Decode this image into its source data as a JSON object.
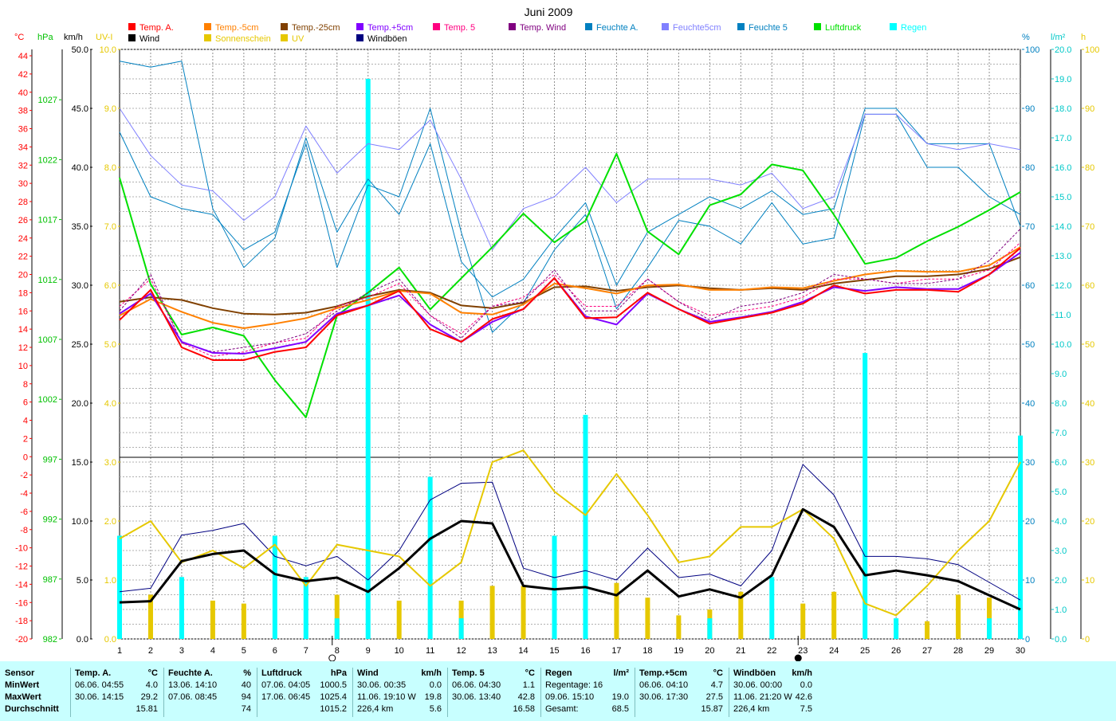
{
  "title": "Juni 2009",
  "legend": [
    {
      "label": "Temp. A.",
      "color": "#ff0000"
    },
    {
      "label": "Wind",
      "color": "#000000"
    },
    {
      "label": "Temp.-5cm",
      "color": "#ff8000"
    },
    {
      "label": "Sonnenschein",
      "color": "#e6c800"
    },
    {
      "label": "Temp.-25cm",
      "color": "#804000"
    },
    {
      "label": "UV",
      "color": "#e6c800"
    },
    {
      "label": "Temp.+5cm",
      "color": "#8000ff"
    },
    {
      "label": "Windböen",
      "color": "#000080"
    },
    {
      "label": "Temp. 5",
      "color": "#ff0080"
    },
    {
      "label": "Temp. Wind",
      "color": "#800080"
    },
    {
      "label": "Feuchte A.",
      "color": "#0080c0"
    },
    {
      "label": "Feuchte5cm",
      "color": "#8080ff"
    },
    {
      "label": "Feuchte 5",
      "color": "#0080c0"
    },
    {
      "label": "Luftdruck",
      "color": "#00e000"
    },
    {
      "label": "Regen",
      "color": "#00ffff"
    }
  ],
  "axis_headers": {
    "temp": "°C",
    "hpa": "hPa",
    "kmh": "km/h",
    "uv": "UV-I",
    "pct": "%",
    "rain": "l/m²",
    "hours": "h"
  },
  "chart_data": {
    "type": "line",
    "x_label_values": [
      1,
      2,
      3,
      4,
      5,
      6,
      7,
      8,
      9,
      10,
      11,
      12,
      13,
      14,
      15,
      16,
      17,
      18,
      19,
      20,
      21,
      22,
      23,
      24,
      25,
      26,
      27,
      28,
      29,
      30
    ],
    "temp_ticks": [
      44,
      42,
      40,
      38,
      36,
      34,
      32,
      30,
      28,
      26,
      24,
      22,
      20,
      18,
      16,
      14,
      12,
      10,
      8,
      6,
      4,
      2,
      0,
      -2,
      -4,
      -6,
      -8,
      -10,
      -12,
      -14,
      -16,
      -18,
      -20
    ],
    "temp_range": [
      -20,
      44
    ],
    "hpa_ticks": [
      1027,
      1022,
      1017,
      1012,
      1007,
      1002,
      997,
      992,
      987,
      982
    ],
    "hpa_range": [
      982,
      1032
    ],
    "upper_kmh_ticks": [
      "50.0",
      "45.0",
      "40.0",
      "35.0",
      "30.0",
      "25.0",
      "20.0"
    ],
    "upper_uv_ticks": [
      "10.0",
      "9.0",
      "8.0",
      "7.0",
      "6.0",
      "5.0",
      "4.0"
    ],
    "lower_kmh_ticks": [
      "15.0",
      "10.0",
      "5.0",
      "0.0"
    ],
    "lower_uv_ticks": [
      "3.0",
      "2.0",
      "1.0",
      "0.0"
    ],
    "lower_kmh_range": [
      0,
      15
    ],
    "pct_ticks": [
      100,
      90,
      80,
      70,
      60,
      50,
      40,
      30,
      20,
      10,
      0
    ],
    "rain_ticks": [
      "20.0",
      "19.0",
      "18.0",
      "17.0",
      "16.0",
      "15.0",
      "14.0",
      "13.0",
      "12.0",
      "11.0",
      "10.0",
      "9.0",
      "8.0",
      "7.0",
      "6.0",
      "5.0",
      "4.0",
      "3.0",
      "2.0",
      "1.0",
      "0.0"
    ],
    "rain_range": [
      0,
      20
    ],
    "hours_ticks": [
      100,
      90,
      80,
      70,
      60,
      50,
      40,
      30,
      20,
      10,
      0
    ],
    "hours_range": [
      0,
      100
    ],
    "moon_days": [
      {
        "day": 8,
        "phase": "first-quarter"
      },
      {
        "day": 23,
        "phase": "new-moon"
      }
    ],
    "series": [
      {
        "name": "Feuchte A.",
        "axis": "pct",
        "color": "#0080c0",
        "values": [
          86,
          75,
          73,
          72,
          66,
          69,
          84,
          63,
          77,
          75,
          90,
          69,
          52,
          57,
          66,
          72,
          56,
          63,
          71,
          70,
          67,
          74,
          67,
          68,
          89,
          89,
          80,
          80,
          75,
          72
        ]
      },
      {
        "name": "Feuchte 5",
        "axis": "pct",
        "color": "#0080c0",
        "values": [
          98,
          97,
          98,
          73,
          63,
          68,
          85,
          69,
          78,
          72,
          84,
          64,
          58,
          61,
          68,
          74,
          60,
          69,
          72,
          75,
          73,
          76,
          72,
          73,
          90,
          90,
          84,
          84,
          84,
          70
        ]
      },
      {
        "name": "Feuchte5cm",
        "axis": "pct",
        "color": "#8080ff",
        "values": [
          90,
          82,
          77,
          76,
          71,
          75,
          87,
          79,
          84,
          83,
          88,
          78,
          66,
          73,
          75,
          80,
          74,
          78,
          78,
          78,
          77,
          79,
          73,
          75,
          89,
          89,
          84,
          83,
          84,
          83
        ]
      },
      {
        "name": "Luftdruck",
        "axis": "hpa",
        "color": "#00e000",
        "values": [
          1020.5,
          1011.6,
          1007.4,
          1008.0,
          1007.3,
          1003.6,
          1000.5,
          1009.0,
          1010.9,
          1013.0,
          1009.5,
          1012.1,
          1014.7,
          1017.5,
          1015.1,
          1016.9,
          1022.5,
          1016.0,
          1014.1,
          1018.2,
          1019.1,
          1021.6,
          1021.1,
          1017.4,
          1013.3,
          1013.8,
          1015.2,
          1016.4,
          1017.8,
          1019.3
        ]
      },
      {
        "name": "Temp.-25cm",
        "axis": "temp",
        "color": "#804000",
        "values": [
          17.0,
          17.5,
          17.2,
          16.3,
          15.7,
          15.6,
          15.8,
          16.5,
          17.6,
          18.3,
          18.0,
          16.6,
          16.3,
          16.9,
          18.6,
          18.7,
          18.2,
          18.6,
          18.8,
          18.5,
          18.3,
          18.5,
          18.3,
          19.0,
          19.4,
          19.8,
          19.8,
          20.0,
          20.6,
          21.9
        ]
      },
      {
        "name": "Temp.-5cm",
        "axis": "temp",
        "color": "#ff8000",
        "values": [
          15.5,
          17.3,
          15.9,
          14.7,
          14.1,
          14.6,
          15.2,
          16.3,
          17.2,
          18.2,
          17.9,
          15.8,
          15.6,
          16.7,
          19.0,
          18.5,
          17.9,
          18.8,
          18.9,
          18.3,
          18.3,
          18.6,
          18.5,
          19.3,
          20.0,
          20.4,
          20.3,
          20.3,
          21.0,
          23.0
        ]
      },
      {
        "name": "Temp. 5",
        "axis": "temp",
        "color": "#ff0080",
        "values": [
          16.5,
          19.5,
          12.5,
          11.0,
          11.5,
          12.5,
          13.0,
          16.5,
          17.5,
          19.0,
          15.5,
          13.5,
          16.5,
          17.5,
          20.0,
          16.5,
          16.5,
          19.5,
          17.0,
          15.5,
          16.0,
          16.5,
          17.5,
          19.5,
          19.5,
          19.0,
          19.5,
          19.5,
          20.5,
          23.5
        ]
      },
      {
        "name": "Temp. Wind",
        "axis": "temp",
        "color": "#800080",
        "values": [
          16.0,
          20.0,
          12.5,
          11.5,
          12.0,
          12.5,
          13.5,
          16.0,
          18.0,
          19.5,
          15.5,
          13.0,
          16.5,
          17.0,
          20.5,
          16.0,
          16.0,
          19.5,
          17.0,
          15.0,
          16.5,
          17.0,
          18.0,
          20.0,
          19.5,
          19.0,
          19.0,
          19.5,
          21.5,
          25.0
        ]
      },
      {
        "name": "Temp.+5cm",
        "axis": "temp",
        "color": "#8000ff",
        "values": [
          15.7,
          17.9,
          12.6,
          11.4,
          11.3,
          11.9,
          12.6,
          15.7,
          16.6,
          17.7,
          14.5,
          12.6,
          14.8,
          16.2,
          19.6,
          15.4,
          14.5,
          17.9,
          16.2,
          14.8,
          15.3,
          15.9,
          17.0,
          18.6,
          18.2,
          18.6,
          18.4,
          18.4,
          20.0,
          22.4
        ]
      },
      {
        "name": "Temp. A.",
        "axis": "temp",
        "color": "#ff0000",
        "values": [
          15.0,
          18.3,
          12.0,
          10.6,
          10.6,
          11.5,
          12.0,
          15.5,
          16.6,
          18.2,
          14.0,
          12.6,
          15.1,
          16.2,
          19.6,
          15.2,
          15.3,
          18.0,
          16.2,
          14.6,
          15.2,
          15.8,
          16.8,
          18.8,
          17.9,
          18.3,
          18.3,
          18.1,
          20.0,
          22.9
        ]
      },
      {
        "name": "Windböen",
        "axis": "lower_kmh",
        "color": "#000080",
        "values": [
          4.0,
          4.3,
          8.8,
          9.2,
          9.8,
          7.0,
          6.2,
          7.0,
          5.0,
          7.5,
          11.8,
          13.2,
          13.3,
          6.0,
          5.2,
          5.8,
          5.0,
          7.7,
          5.2,
          5.5,
          4.5,
          7.5,
          14.8,
          12.2,
          7.0,
          7.0,
          6.8,
          6.3,
          4.8,
          3.3
        ]
      },
      {
        "name": "Sonnenschein",
        "axis": "hours",
        "color": "#e6c800",
        "values": [
          17,
          20,
          13,
          15,
          12,
          16,
          9,
          16,
          15,
          14,
          9,
          13,
          30,
          32,
          25,
          21,
          28,
          21,
          13,
          14,
          19,
          19,
          22,
          17,
          6,
          4,
          9,
          15,
          20,
          30
        ]
      },
      {
        "name": "Wind",
        "axis": "lower_kmh",
        "color": "#000000",
        "values": [
          3.1,
          3.2,
          6.6,
          7.2,
          7.5,
          5.5,
          4.9,
          5.2,
          4.0,
          6.0,
          8.5,
          10.0,
          9.8,
          4.5,
          4.2,
          4.4,
          3.7,
          5.8,
          3.6,
          4.2,
          3.5,
          5.4,
          11.0,
          9.5,
          5.4,
          5.8,
          5.4,
          4.9,
          3.7,
          2.5
        ]
      }
    ],
    "rain_bars": [
      {
        "day": 1,
        "value": 3.5
      },
      {
        "day": 3,
        "value": 2.1
      },
      {
        "day": 6,
        "value": 3.5
      },
      {
        "day": 7,
        "value": 2.1
      },
      {
        "day": 8,
        "value": 0.7
      },
      {
        "day": 9,
        "value": 19.0
      },
      {
        "day": 10,
        "value": 0.0
      },
      {
        "day": 11,
        "value": 5.5
      },
      {
        "day": 12,
        "value": 0.7
      },
      {
        "day": 15,
        "value": 3.5
      },
      {
        "day": 16,
        "value": 7.6
      },
      {
        "day": 20,
        "value": 0.7
      },
      {
        "day": 22,
        "value": 2.1
      },
      {
        "day": 25,
        "value": 9.7
      },
      {
        "day": 26,
        "value": 0.7
      },
      {
        "day": 29,
        "value": 0.7
      },
      {
        "day": 30,
        "value": 6.9
      }
    ],
    "uv_bars": [
      {
        "day": 2,
        "value": 0.75
      },
      {
        "day": 4,
        "value": 0.65
      },
      {
        "day": 5,
        "value": 0.6
      },
      {
        "day": 8,
        "value": 0.75
      },
      {
        "day": 10,
        "value": 0.65
      },
      {
        "day": 12,
        "value": 0.65
      },
      {
        "day": 13,
        "value": 0.9
      },
      {
        "day": 14,
        "value": 0.9
      },
      {
        "day": 17,
        "value": 0.95
      },
      {
        "day": 18,
        "value": 0.7
      },
      {
        "day": 19,
        "value": 0.4
      },
      {
        "day": 20,
        "value": 0.5
      },
      {
        "day": 21,
        "value": 0.8
      },
      {
        "day": 23,
        "value": 0.6
      },
      {
        "day": 24,
        "value": 0.8
      },
      {
        "day": 27,
        "value": 0.3
      },
      {
        "day": 28,
        "value": 0.75
      },
      {
        "day": 29,
        "value": 0.7
      }
    ]
  },
  "summary": {
    "row_labels": [
      "Sensor",
      "MinWert",
      "MaxWert",
      "Durchschnitt"
    ],
    "blocks": [
      {
        "name": "Temp. A.",
        "unit": "°C",
        "rows": [
          [
            "06.06.  04:55",
            "4.0"
          ],
          [
            "30.06.  14:15",
            "29.2"
          ],
          [
            "",
            "15.81"
          ]
        ]
      },
      {
        "name": "Feuchte A.",
        "unit": "%",
        "rows": [
          [
            "13.06.  14:10",
            "40"
          ],
          [
            "07.06.  08:45",
            "94"
          ],
          [
            "",
            "74"
          ]
        ]
      },
      {
        "name": "Luftdruck",
        "unit": "hPa",
        "rows": [
          [
            "07.06.  04:05",
            "1000.5"
          ],
          [
            "17.06.  06:45",
            "1025.4"
          ],
          [
            "",
            "1015.2"
          ]
        ]
      },
      {
        "name": "Wind",
        "unit": "km/h",
        "rows": [
          [
            "30.06.  00:35",
            "0.0"
          ],
          [
            "11.06.  19:10  W",
            "19.8"
          ],
          [
            "226,4 km",
            "5.6"
          ]
        ]
      },
      {
        "name": "Temp. 5",
        "unit": "°C",
        "rows": [
          [
            "06.06.  04:30",
            "1.1"
          ],
          [
            "30.06.  13:40",
            "42.8"
          ],
          [
            "",
            "16.58"
          ]
        ]
      },
      {
        "name": "Regen",
        "unit": "l/m²",
        "rows": [
          [
            "Regentage: 16",
            ""
          ],
          [
            "09.06.  15:10",
            "19.0"
          ],
          [
            "Gesamt:",
            "68.5"
          ]
        ]
      },
      {
        "name": "Temp.+5cm",
        "unit": "°C",
        "rows": [
          [
            "06.06.  04:10",
            "4.7"
          ],
          [
            "30.06.  17:30",
            "27.5"
          ],
          [
            "",
            "15.87"
          ]
        ]
      },
      {
        "name": "Windböen",
        "unit": "km/h",
        "rows": [
          [
            "30.06.  00:00",
            "0.0"
          ],
          [
            "11.06.  21:20  W",
            "42.6"
          ],
          [
            "226,4 km",
            "7.5"
          ]
        ]
      }
    ]
  }
}
